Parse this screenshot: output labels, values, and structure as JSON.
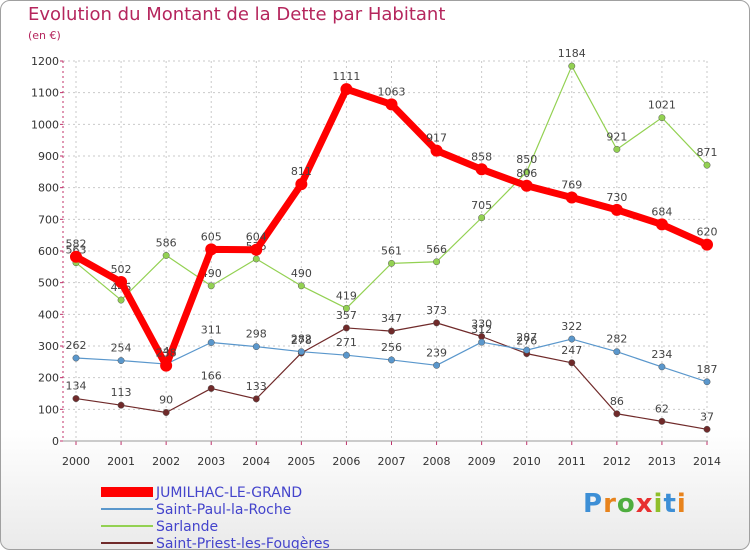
{
  "header": {
    "title": "Evolution du Montant de la Dette par Habitant",
    "unit": "(en €)"
  },
  "chart_data": {
    "type": "line",
    "title": "Evolution du Montant de la Dette par Habitant",
    "subtitle": "(en €)",
    "x": [
      "2000",
      "2001",
      "2002",
      "2003",
      "2004",
      "2005",
      "2006",
      "2007",
      "2008",
      "2009",
      "2010",
      "2011",
      "2012",
      "2013",
      "2014"
    ],
    "ylim": [
      0,
      1200
    ],
    "yticks": [
      0,
      100,
      200,
      300,
      400,
      500,
      600,
      700,
      800,
      900,
      1000,
      1100,
      1200
    ],
    "grid": true,
    "legend_position": "bottom-left",
    "series": [
      {
        "name": "Saint-Priest-les-Fougères",
        "color": "#702a2a",
        "values": [
          134,
          113,
          90,
          166,
          133,
          278,
          357,
          347,
          373,
          330,
          276,
          247,
          86,
          62,
          37
        ]
      },
      {
        "name": "Sarlande",
        "color": "#93d152",
        "values": [
          563,
          445,
          586,
          490,
          575,
          490,
          419,
          561,
          566,
          705,
          850,
          1184,
          921,
          1021,
          871
        ]
      },
      {
        "name": "Saint-Paul-la-Roche",
        "color": "#5a97cc",
        "values": [
          262,
          254,
          243,
          311,
          298,
          282,
          271,
          256,
          239,
          312,
          287,
          322,
          282,
          234,
          187
        ]
      },
      {
        "name": "JUMILHAC-LE-GRAND",
        "color": "#ff0000",
        "values": [
          582,
          502,
          238,
          605,
          604,
          811,
          1111,
          1063,
          917,
          858,
          806,
          769,
          730,
          684,
          620
        ]
      }
    ]
  },
  "legend": {
    "items": [
      {
        "name": "JUMILHAC-LE-GRAND",
        "color": "#ff0000"
      },
      {
        "name": "Saint-Paul-la-Roche",
        "color": "#5a97cc"
      },
      {
        "name": "Sarlande",
        "color": "#93d152"
      },
      {
        "name": "Saint-Priest-les-Fougères",
        "color": "#702a2a"
      }
    ],
    "text_color": "#4444cc"
  },
  "brand": {
    "logo_letters": [
      "P",
      "r",
      "o",
      "x",
      "i",
      "t",
      "i"
    ],
    "logo_colors": [
      "#3d8fd6",
      "#e8831c",
      "#4fae3f",
      "#e83030",
      "#8fbf2a",
      "#3d8fd6",
      "#e8831c"
    ]
  }
}
